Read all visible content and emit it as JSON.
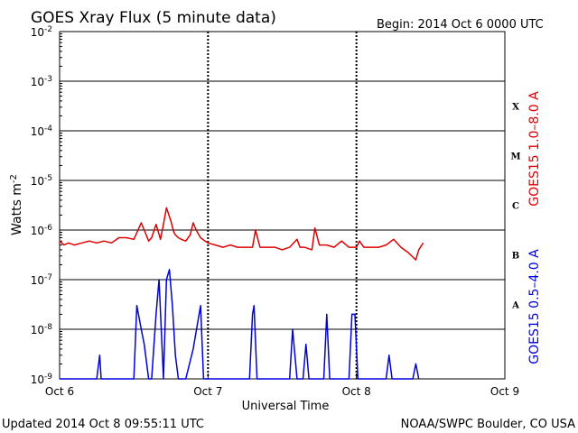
{
  "chart_data": {
    "type": "line",
    "title": "GOES Xray Flux (5 minute data)",
    "begin_label": "Begin:  2014 Oct 6 0000 UTC",
    "ylabel_base": "Watts m",
    "ylabel_exp": "-2",
    "xlabel": "Universal Time",
    "y_scale": "log",
    "ylim": [
      1e-09,
      0.01
    ],
    "xlim": [
      0,
      3
    ],
    "x_ticks": [
      {
        "value": 0,
        "label": "Oct 6"
      },
      {
        "value": 1,
        "label": "Oct 7"
      },
      {
        "value": 2,
        "label": "Oct 8"
      },
      {
        "value": 3,
        "label": "Oct 9"
      }
    ],
    "y_ticks": [
      {
        "exp": -2,
        "label": "10",
        "sup": "-2"
      },
      {
        "exp": -3,
        "label": "10",
        "sup": "-3"
      },
      {
        "exp": -4,
        "label": "10",
        "sup": "-4"
      },
      {
        "exp": -5,
        "label": "10",
        "sup": "-5"
      },
      {
        "exp": -6,
        "label": "10",
        "sup": "-6"
      },
      {
        "exp": -7,
        "label": "10",
        "sup": "-7"
      },
      {
        "exp": -8,
        "label": "10",
        "sup": "-8"
      },
      {
        "exp": -9,
        "label": "10",
        "sup": "-9"
      }
    ],
    "flare_classes": [
      {
        "label": "X",
        "exp": -3.5
      },
      {
        "label": "M",
        "exp": -4.5
      },
      {
        "label": "C",
        "exp": -5.5
      },
      {
        "label": "B",
        "exp": -6.5
      },
      {
        "label": "A",
        "exp": -7.5
      }
    ],
    "series": [
      {
        "name": "GOES15 1.0–8.0 A",
        "color": "#dd0000",
        "x": [
          0,
          0.03,
          0.06,
          0.1,
          0.15,
          0.2,
          0.25,
          0.3,
          0.35,
          0.4,
          0.45,
          0.5,
          0.55,
          0.57,
          0.6,
          0.62,
          0.65,
          0.68,
          0.7,
          0.72,
          0.75,
          0.77,
          0.78,
          0.8,
          0.82,
          0.85,
          0.88,
          0.9,
          0.92,
          0.95,
          0.98,
          1.0,
          1.05,
          1.1,
          1.15,
          1.2,
          1.25,
          1.3,
          1.32,
          1.35,
          1.4,
          1.45,
          1.5,
          1.55,
          1.6,
          1.62,
          1.65,
          1.7,
          1.72,
          1.75,
          1.8,
          1.85,
          1.9,
          1.95,
          2.0,
          2.02,
          2.05,
          2.1,
          2.15,
          2.2,
          2.25,
          2.3,
          2.35,
          2.4,
          2.42,
          2.45
        ],
        "y": [
          6e-07,
          5e-07,
          5.5e-07,
          5e-07,
          5.5e-07,
          6e-07,
          5.5e-07,
          6e-07,
          5.5e-07,
          7e-07,
          7e-07,
          6.5e-07,
          1.4e-06,
          1e-06,
          6e-07,
          7e-07,
          1.3e-06,
          6.5e-07,
          1.3e-06,
          2.8e-06,
          1.5e-06,
          9e-07,
          8e-07,
          7e-07,
          6.5e-07,
          6e-07,
          8e-07,
          1.4e-06,
          1e-06,
          7e-07,
          6e-07,
          5.5e-07,
          5e-07,
          4.5e-07,
          5e-07,
          4.5e-07,
          4.5e-07,
          4.5e-07,
          1e-06,
          4.5e-07,
          4.5e-07,
          4.5e-07,
          4e-07,
          4.5e-07,
          6.5e-07,
          4.5e-07,
          4.5e-07,
          4e-07,
          1.1e-06,
          5e-07,
          5e-07,
          4.5e-07,
          6e-07,
          4.5e-07,
          4.5e-07,
          6e-07,
          4.5e-07,
          4.5e-07,
          4.5e-07,
          5e-07,
          6.5e-07,
          4.5e-07,
          3.5e-07,
          2.5e-07,
          4e-07,
          5.5e-07
        ]
      },
      {
        "name": "GOES15 0.5–4.0 A",
        "color": "#0000dd",
        "x": [
          0,
          0.25,
          0.27,
          0.28,
          0.3,
          0.45,
          0.5,
          0.52,
          0.55,
          0.57,
          0.6,
          0.62,
          0.65,
          0.67,
          0.7,
          0.72,
          0.74,
          0.76,
          0.78,
          0.8,
          0.85,
          0.9,
          0.95,
          0.97,
          1.0,
          1.05,
          1.1,
          1.28,
          1.3,
          1.31,
          1.33,
          1.35,
          1.55,
          1.57,
          1.6,
          1.62,
          1.64,
          1.66,
          1.68,
          1.7,
          1.78,
          1.8,
          1.82,
          1.84,
          1.86,
          1.88,
          1.95,
          1.97,
          1.99,
          2.01,
          2.03,
          2.05,
          2.2,
          2.22,
          2.24,
          2.26,
          2.28,
          2.3,
          2.35,
          2.38,
          2.4,
          2.42
        ],
        "y": [
          1e-09,
          1e-09,
          3e-09,
          1e-09,
          1e-09,
          1e-09,
          1e-09,
          3e-08,
          1e-08,
          5e-09,
          1e-09,
          1e-09,
          2e-08,
          1e-07,
          1e-09,
          1e-07,
          1.6e-07,
          3e-08,
          3e-09,
          1e-09,
          1e-09,
          4e-09,
          3e-08,
          1e-09,
          1e-09,
          1e-09,
          1e-09,
          1e-09,
          2e-08,
          3e-08,
          1e-09,
          1e-09,
          1e-09,
          1e-08,
          1e-09,
          1e-09,
          1e-09,
          5e-09,
          1e-09,
          1e-09,
          1e-09,
          2e-08,
          1e-09,
          1e-09,
          1e-09,
          1e-09,
          1e-09,
          2e-08,
          2e-08,
          1e-09,
          1e-09,
          1e-09,
          1e-09,
          3e-09,
          1e-09,
          1e-09,
          1e-09,
          1e-09,
          1e-09,
          1e-09,
          2e-09,
          1e-09
        ]
      }
    ],
    "legend_placement": "right-vertical",
    "grid": true
  },
  "footer": {
    "updated": "Updated 2014 Oct  8 09:55:11 UTC",
    "credit": "NOAA/SWPC Boulder, CO USA"
  }
}
